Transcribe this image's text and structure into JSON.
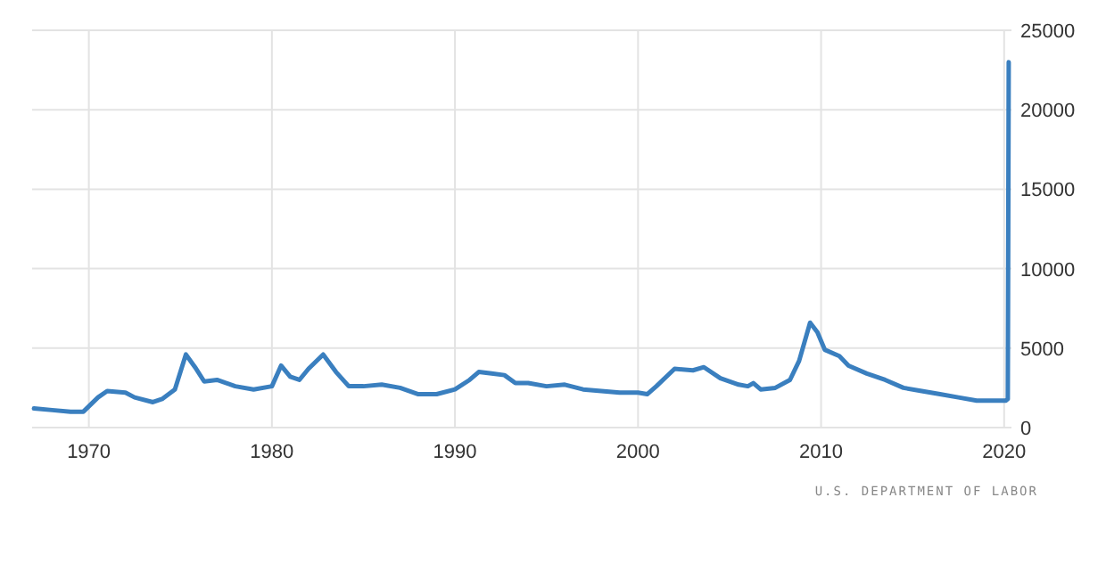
{
  "chart_data": {
    "type": "line",
    "xlim": [
      1966.9,
      2020.4
    ],
    "xticks": [
      1970,
      1980,
      1990,
      2000,
      2010,
      2020
    ],
    "ylim": [
      0,
      25000
    ],
    "yticks": [
      0,
      5000,
      10000,
      15000,
      20000,
      25000
    ],
    "grid": true,
    "marker": "none",
    "line_style": "solid",
    "annotations": [
      "U.S. DEPARTMENT OF LABOR"
    ],
    "series": [
      {
        "color": "#3a7fbf",
        "x": [
          1967,
          1968,
          1969,
          1969.7,
          1970.5,
          1971,
          1972,
          1972.5,
          1973.5,
          1974,
          1974.7,
          1975.3,
          1975.8,
          1976.3,
          1977,
          1978,
          1979,
          1980,
          1980.5,
          1981,
          1981.5,
          1982,
          1982.8,
          1983.5,
          1984.2,
          1985,
          1986,
          1987,
          1988,
          1989,
          1990,
          1990.8,
          1991.3,
          1992,
          1992.7,
          1993.3,
          1994,
          1995,
          1996,
          1997,
          1998,
          1999,
          2000,
          2000.5,
          2001,
          2002,
          2003,
          2003.6,
          2004.5,
          2005.5,
          2006,
          2006.3,
          2006.7,
          2007.5,
          2008.3,
          2008.8,
          2009.4,
          2009.8,
          2010.2,
          2011,
          2011.5,
          2012.5,
          2013.5,
          2014.5,
          2015.5,
          2016.5,
          2017.5,
          2018.5,
          2019.5,
          2020.1,
          2020.2,
          2020.25
        ],
        "values": [
          1200,
          1100,
          1000,
          1000,
          1900,
          2300,
          2200,
          1900,
          1600,
          1800,
          2400,
          4600,
          3800,
          2900,
          3000,
          2600,
          2400,
          2600,
          3900,
          3200,
          3000,
          3700,
          4600,
          3500,
          2600,
          2600,
          2700,
          2500,
          2100,
          2100,
          2400,
          3000,
          3500,
          3400,
          3300,
          2800,
          2800,
          2600,
          2700,
          2400,
          2300,
          2200,
          2200,
          2100,
          2600,
          3700,
          3600,
          3800,
          3100,
          2700,
          2600,
          2800,
          2400,
          2500,
          3000,
          4200,
          6600,
          6000,
          4900,
          4500,
          3900,
          3400,
          3000,
          2500,
          2300,
          2100,
          1900,
          1700,
          1700,
          1700,
          1800,
          23000
        ]
      }
    ]
  }
}
